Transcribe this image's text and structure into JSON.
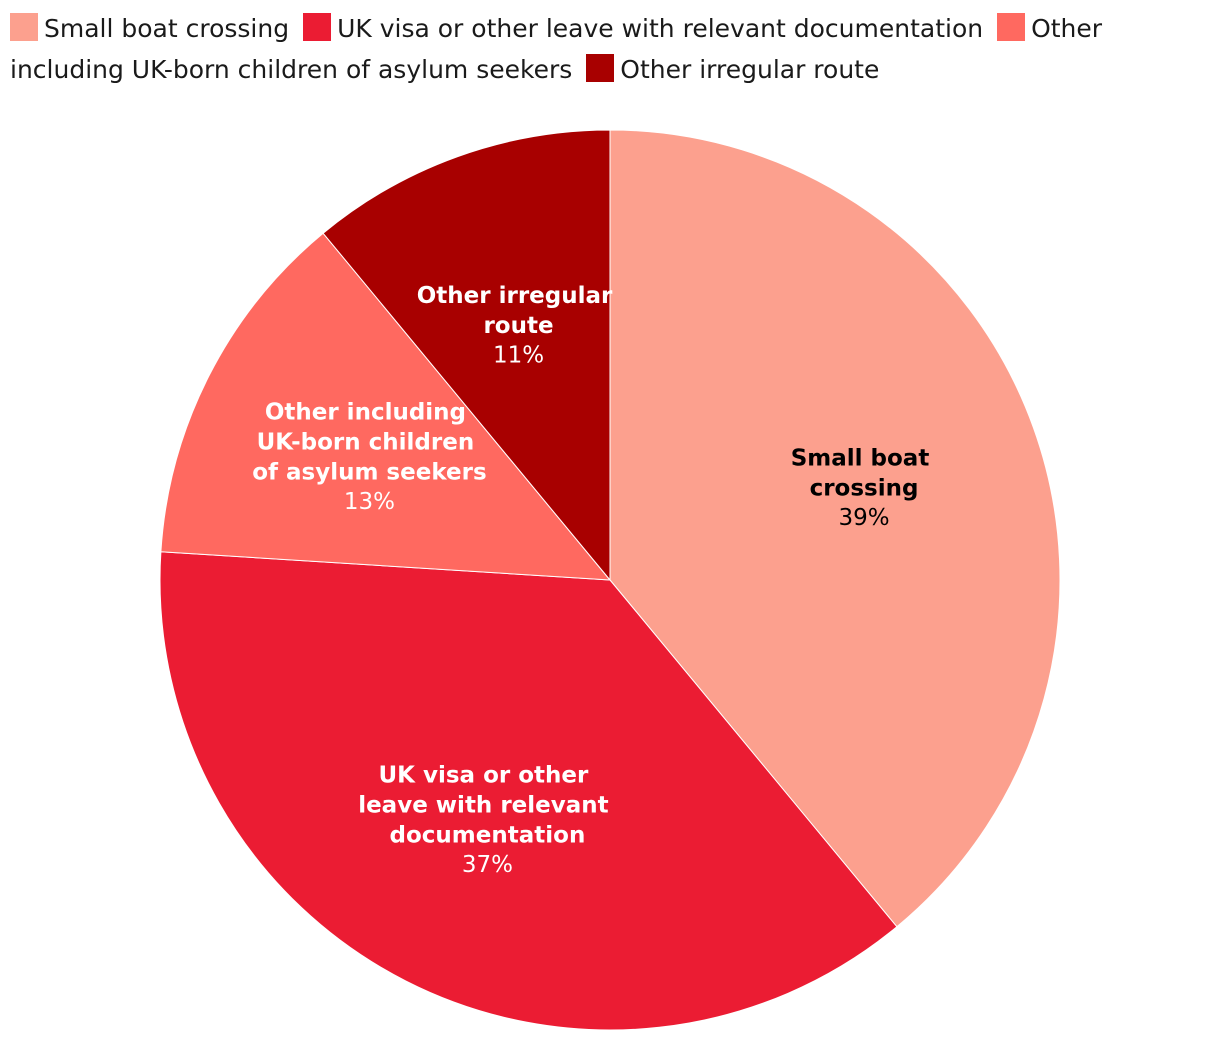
{
  "chart_data": {
    "type": "pie",
    "categories": [
      "Small boat crossing",
      "UK visa or other leave with relevant documentation",
      "Other including UK-born children of asylum seekers",
      "Other irregular route"
    ],
    "values": [
      39,
      37,
      13,
      11
    ],
    "value_labels": [
      "39%",
      "37%",
      "13%",
      "11%"
    ],
    "colors": [
      "#fca08e",
      "#eb1c33",
      "#ff6960",
      "#a80000"
    ]
  }
}
